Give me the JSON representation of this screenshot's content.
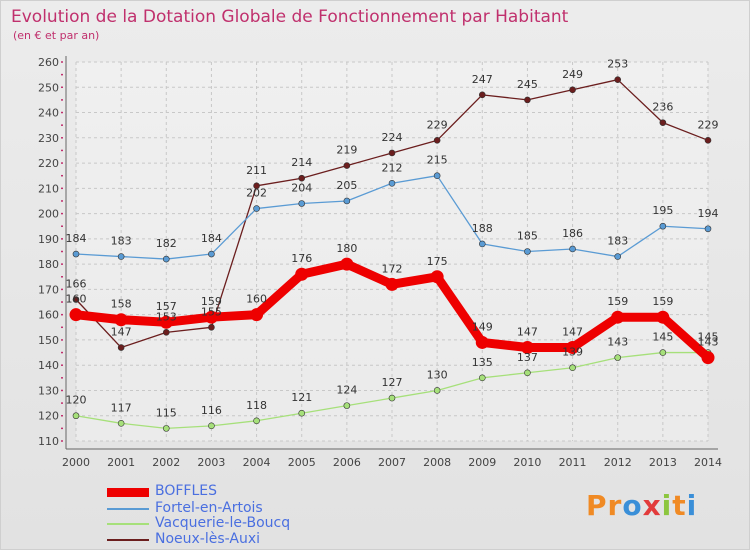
{
  "title": "Evolution de la Dotation Globale de Fonctionnement par Habitant",
  "subtitle": "(en € et par an)",
  "logo": {
    "text": "Proxiti",
    "letters": [
      "P",
      "r",
      "o",
      "x",
      "i",
      "t",
      "i"
    ],
    "colors": [
      "#f08a24",
      "#f08a24",
      "#3a8fd8",
      "#e23b3b",
      "#8cc63f",
      "#f08a24",
      "#3a8fd8"
    ]
  },
  "chart_data": {
    "type": "line",
    "x": [
      "2000",
      "2001",
      "2002",
      "2003",
      "2004",
      "2005",
      "2006",
      "2007",
      "2008",
      "2009",
      "2010",
      "2011",
      "2012",
      "2013",
      "2014"
    ],
    "ylim": [
      110,
      260
    ],
    "yticks": [
      110,
      120,
      130,
      140,
      150,
      160,
      170,
      180,
      190,
      200,
      210,
      220,
      230,
      240,
      250,
      260
    ],
    "grid": true,
    "legend_position": "bottom-left",
    "series": [
      {
        "name": "BOFFLES",
        "color": "#ee0000",
        "values": [
          160,
          158,
          157,
          159,
          160,
          176,
          180,
          172,
          175,
          149,
          147,
          147,
          159,
          159,
          143
        ]
      },
      {
        "name": "Fortel-en-Artois",
        "color": "#5a9bd4",
        "values": [
          184,
          183,
          182,
          184,
          202,
          204,
          205,
          212,
          215,
          188,
          185,
          186,
          183,
          195,
          194
        ]
      },
      {
        "name": "Vacquerie-le-Boucq",
        "color": "#a6e07a",
        "values": [
          120,
          117,
          115,
          116,
          118,
          121,
          124,
          127,
          130,
          135,
          137,
          139,
          143,
          145,
          145
        ]
      },
      {
        "name": "Noeux-lès-Auxi",
        "color": "#6b1e1e",
        "values": [
          166,
          147,
          153,
          155,
          211,
          214,
          219,
          224,
          229,
          247,
          245,
          249,
          253,
          236,
          229
        ]
      }
    ]
  }
}
